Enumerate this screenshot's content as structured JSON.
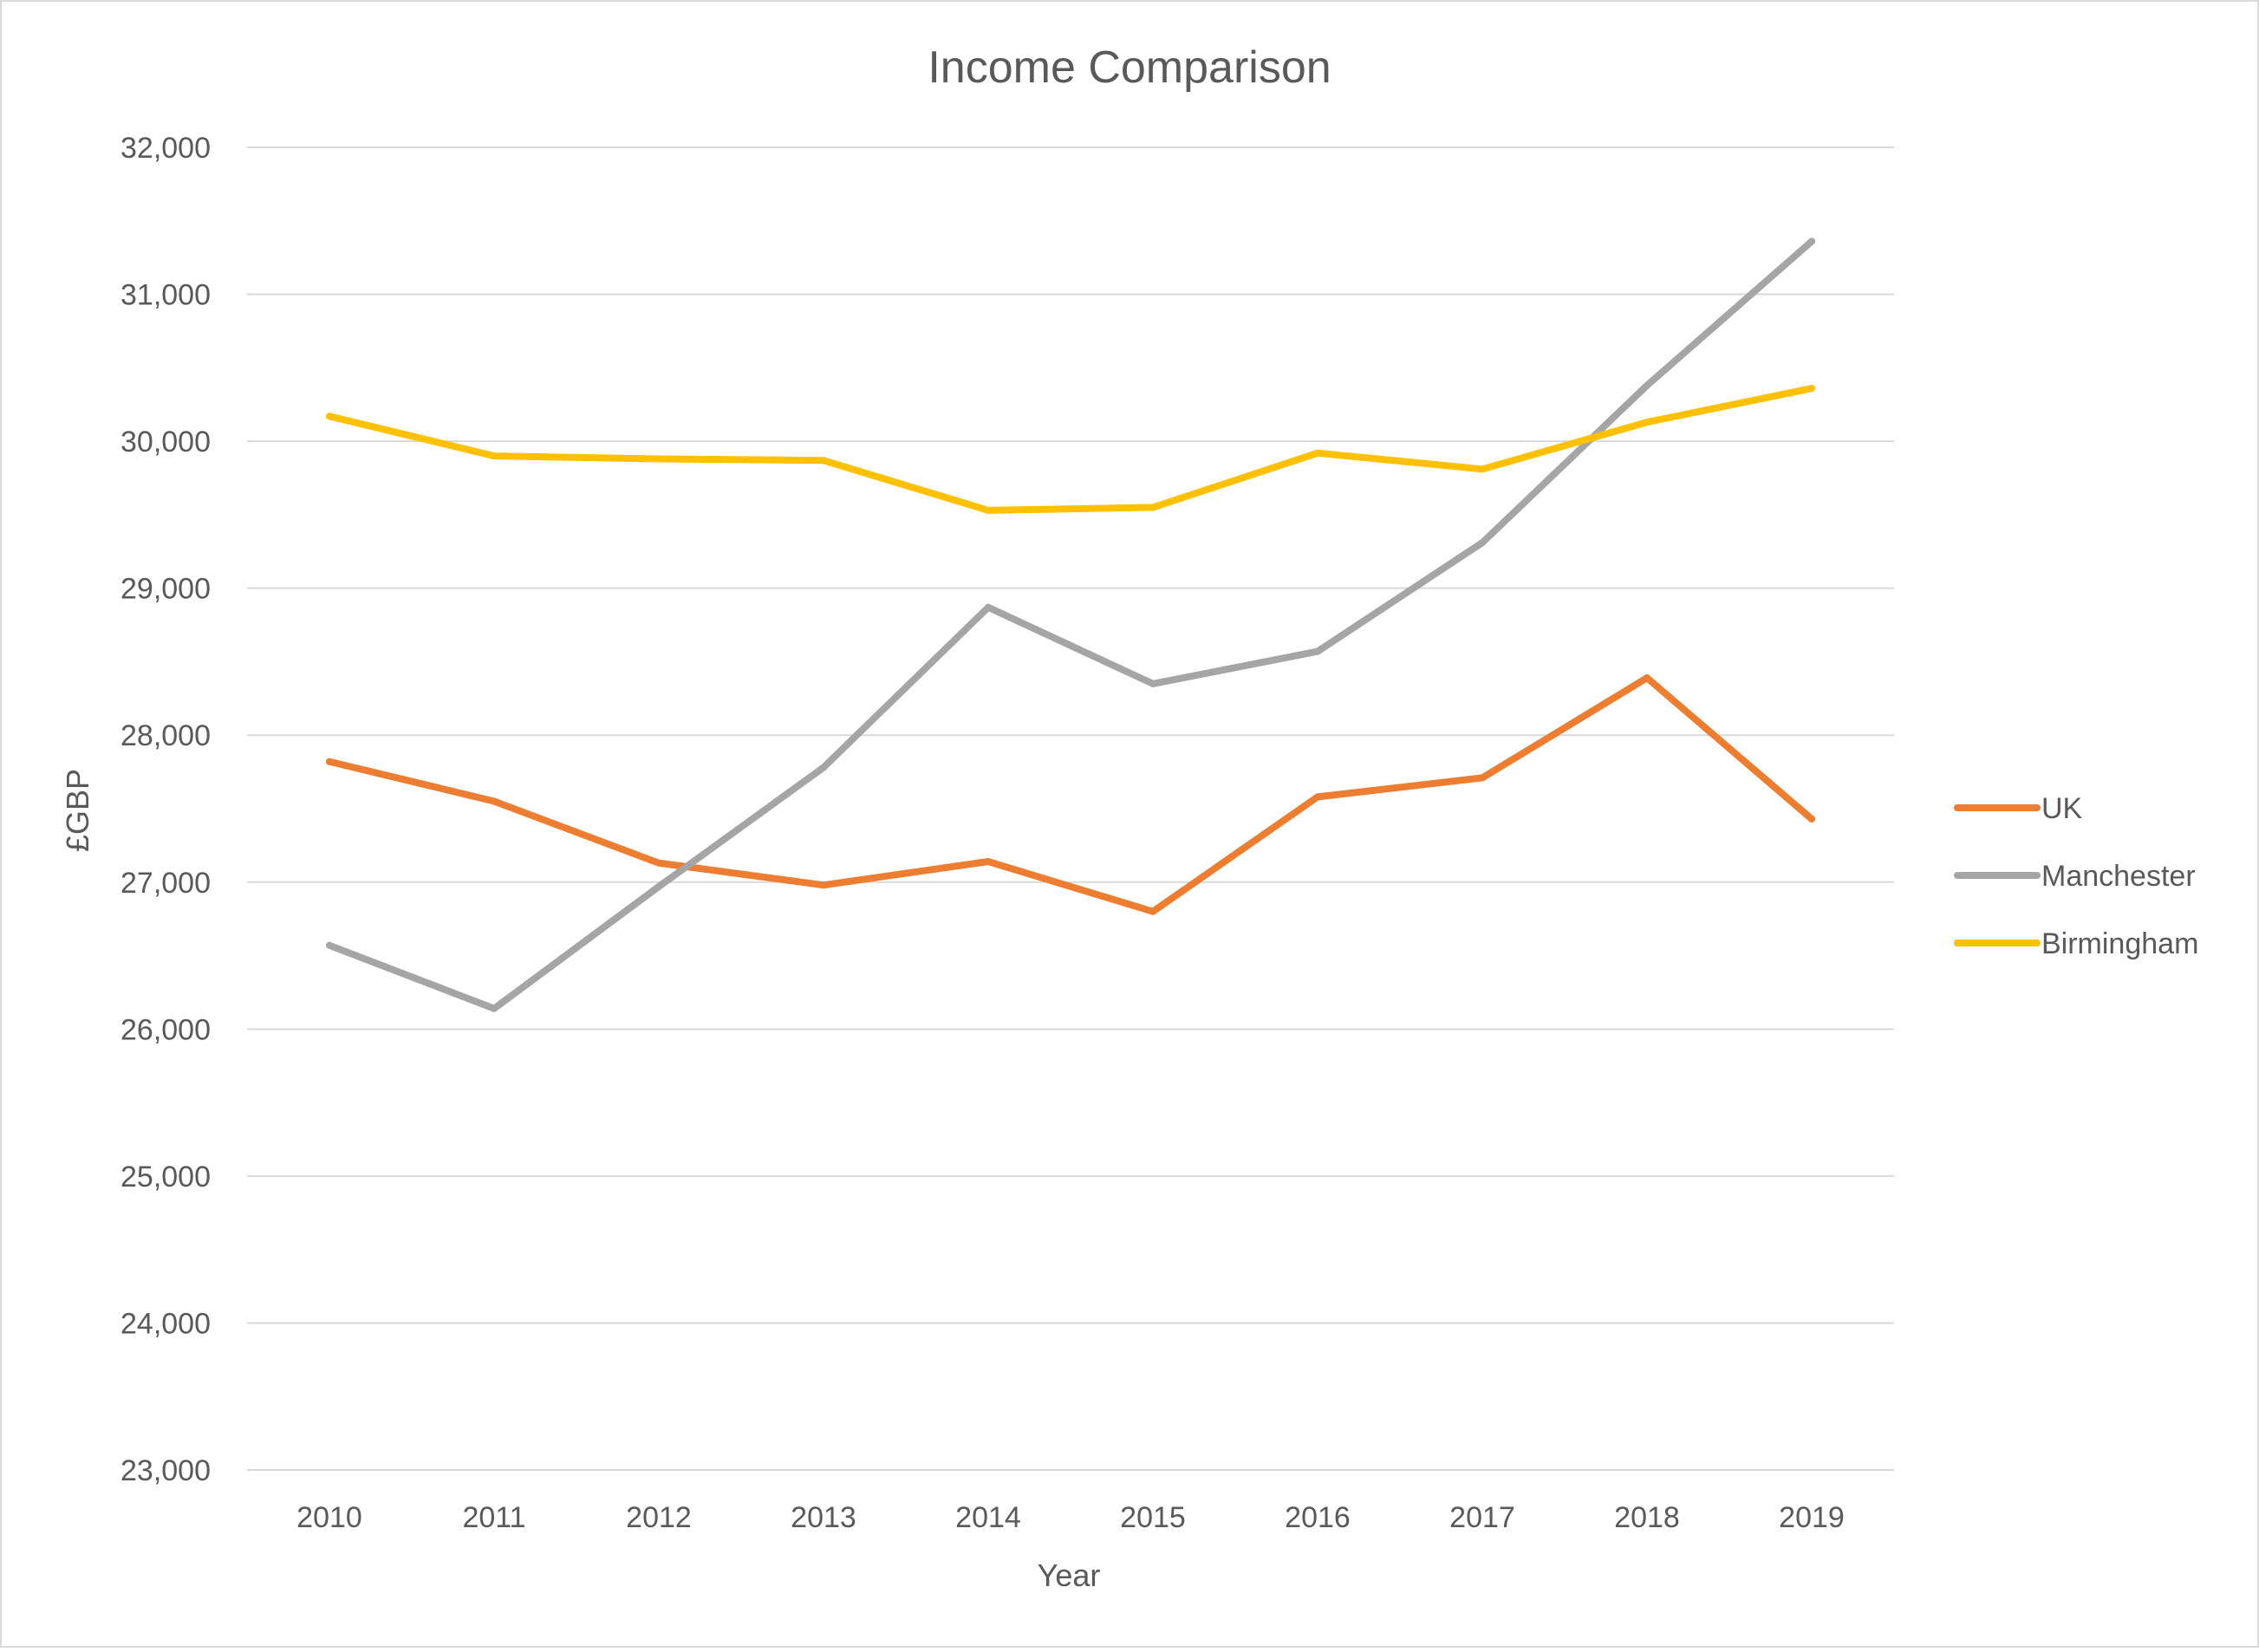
{
  "chart_data": {
    "type": "line",
    "title": "Income Comparison",
    "xlabel": "Year",
    "ylabel": "£GBP",
    "categories": [
      "2010",
      "2011",
      "2012",
      "2013",
      "2014",
      "2015",
      "2016",
      "2017",
      "2018",
      "2019"
    ],
    "ylim": [
      23000,
      32000
    ],
    "yticks": [
      23000,
      24000,
      25000,
      26000,
      27000,
      28000,
      29000,
      30000,
      31000,
      32000
    ],
    "ytick_labels": [
      "23,000",
      "24,000",
      "25,000",
      "26,000",
      "27,000",
      "28,000",
      "29,000",
      "30,000",
      "31,000",
      "32,000"
    ],
    "grid": "horizontal",
    "legend_position": "right",
    "series": [
      {
        "name": "UK",
        "color": "#ED7D31",
        "values": [
          27820,
          27550,
          27130,
          26980,
          27140,
          26800,
          27580,
          27710,
          28390,
          27430
        ]
      },
      {
        "name": "Manchester",
        "color": "#A5A5A5",
        "values": [
          26570,
          26140,
          26970,
          27780,
          28870,
          28350,
          28570,
          29310,
          30380,
          31360
        ]
      },
      {
        "name": "Birmingham",
        "color": "#FFC000",
        "values": [
          30170,
          29900,
          29880,
          29870,
          29530,
          29550,
          29920,
          29810,
          30130,
          30360
        ]
      }
    ]
  }
}
